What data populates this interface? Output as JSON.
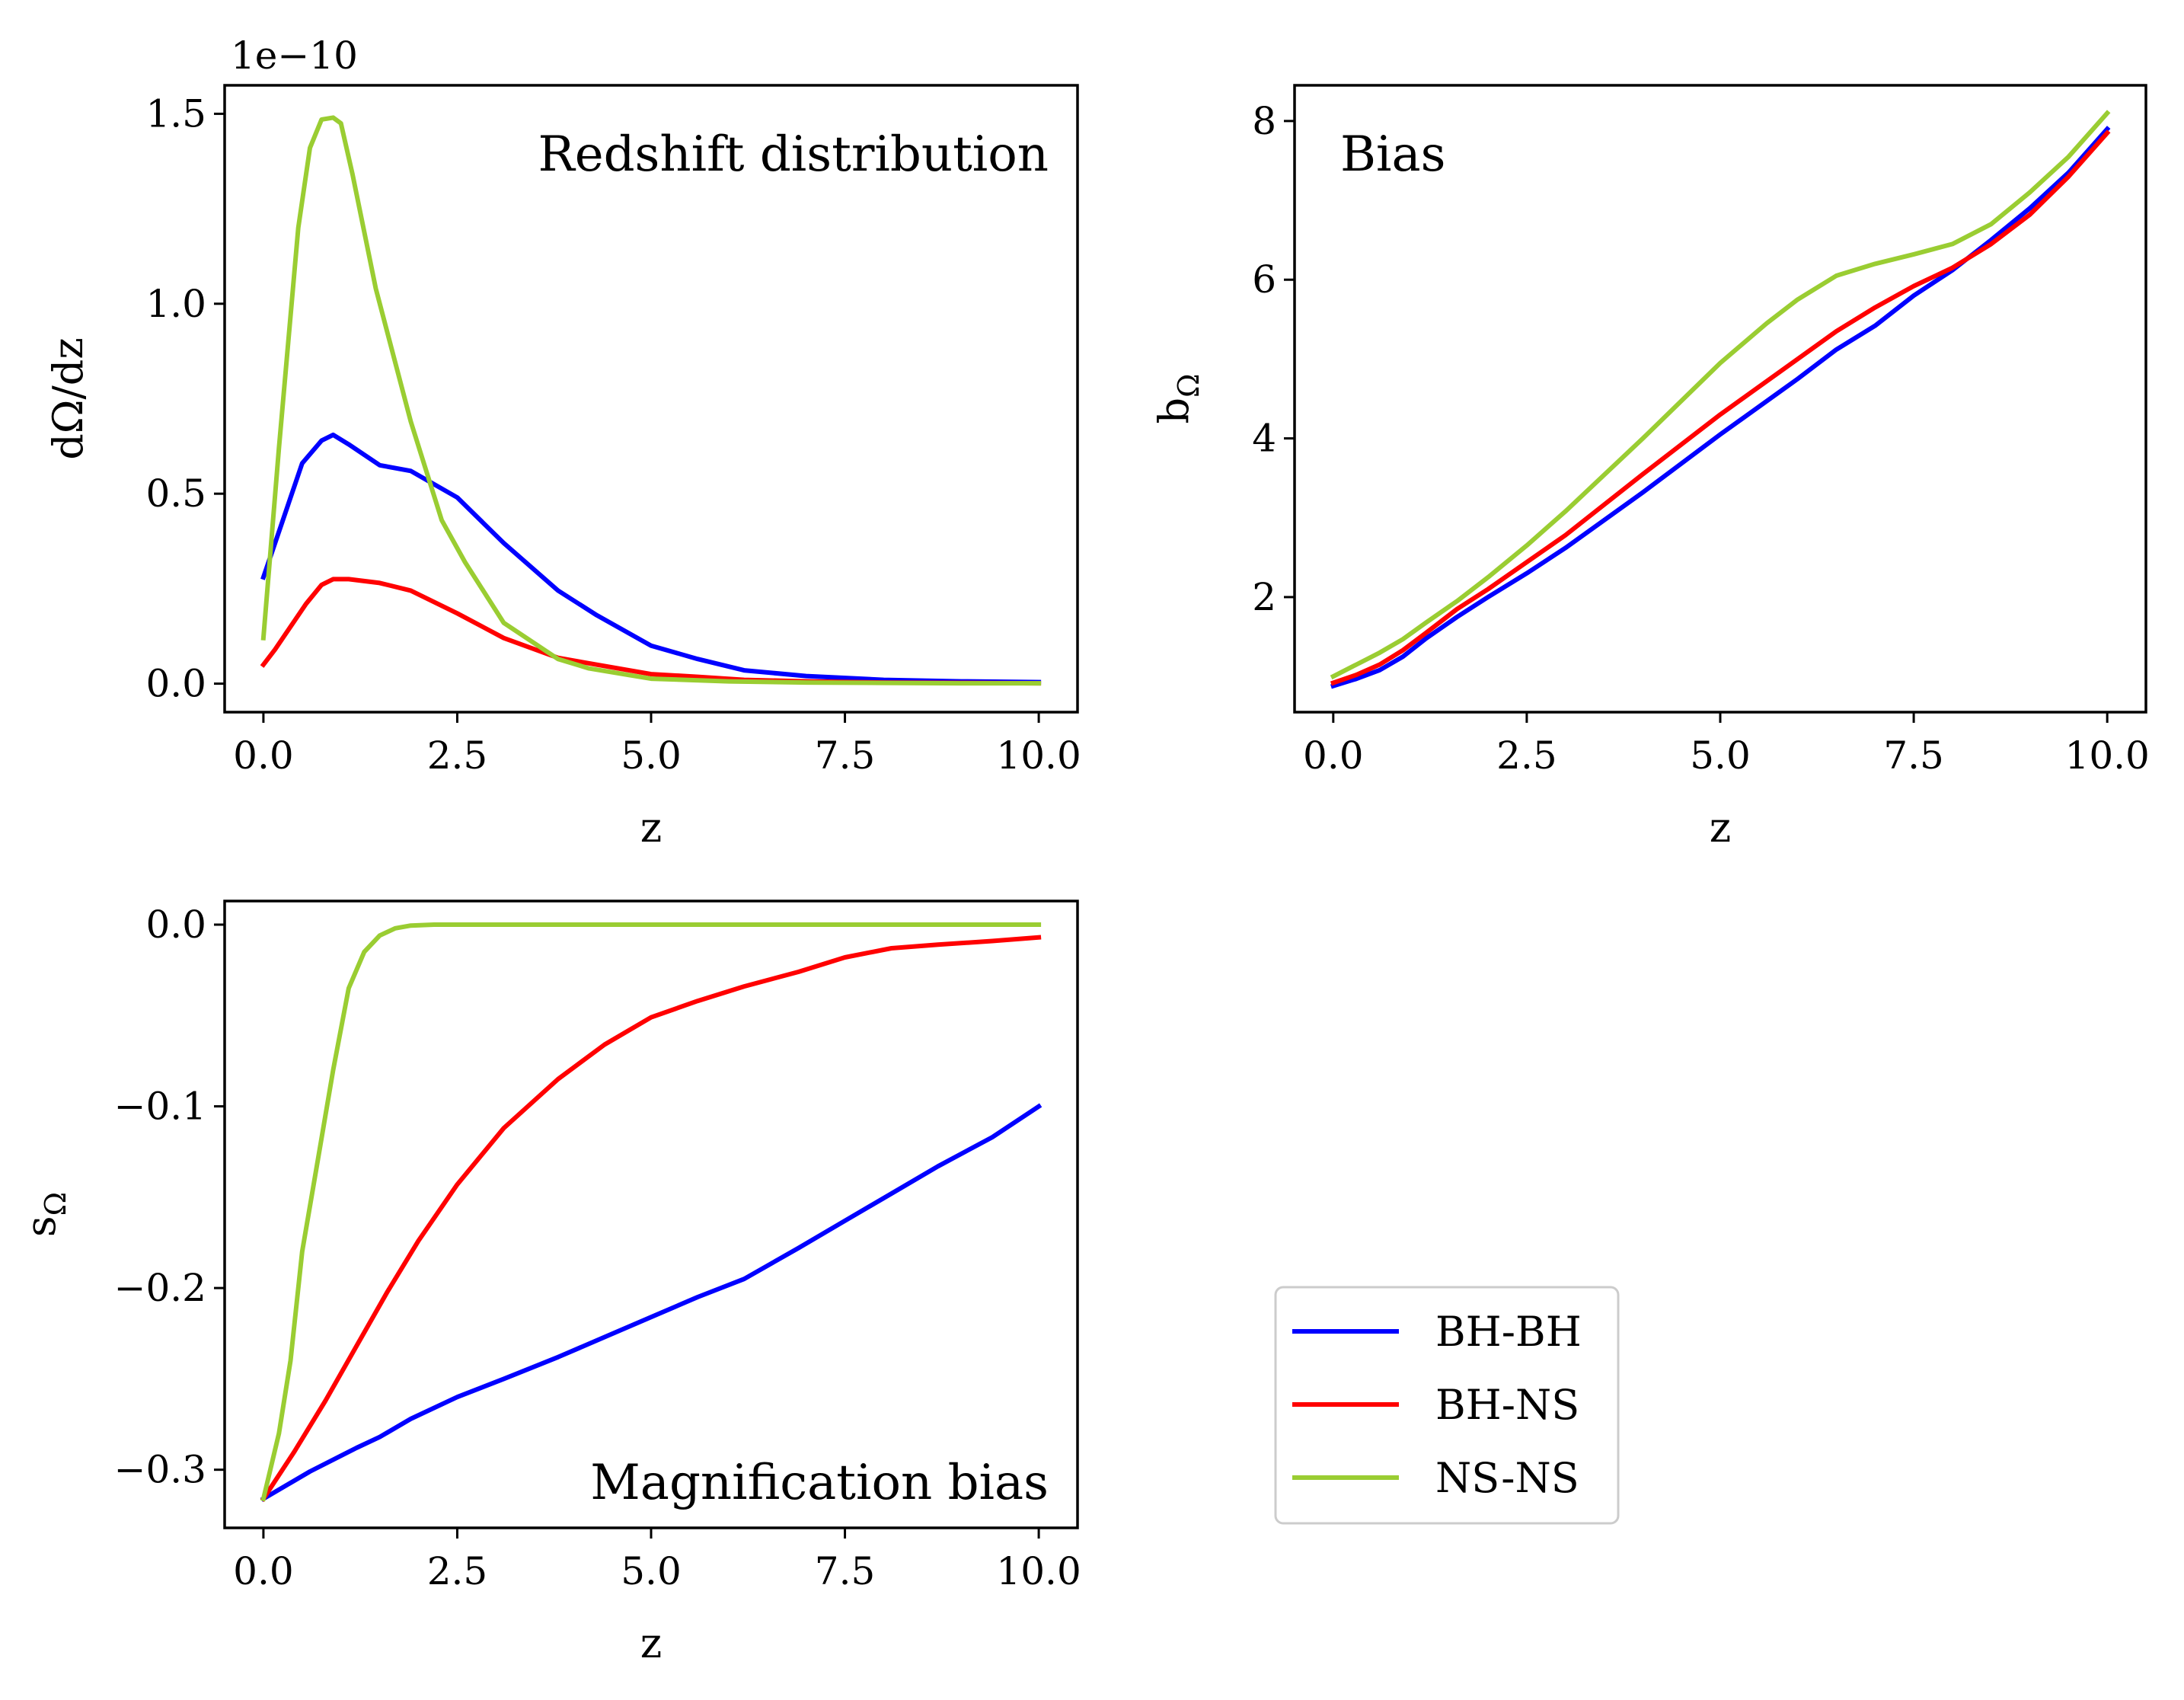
{
  "chart_data": [
    {
      "type": "line",
      "title": "Redshift distribution",
      "xlabel": "z",
      "ylabel": "dΩ/dz",
      "offset_label": "1e−10",
      "xlim": [
        -0.5,
        10.5
      ],
      "ylim": [
        -0.075,
        1.575
      ],
      "xticks": [
        0,
        2.5,
        5,
        7.5,
        10
      ],
      "xtick_labels": [
        "0.0",
        "2.5",
        "5.0",
        "7.5",
        "10.0"
      ],
      "yticks": [
        0,
        0.5,
        1.0,
        1.5
      ],
      "ytick_labels": [
        "0.0",
        "0.5",
        "1.0",
        "1.5"
      ],
      "title_position": "top-right",
      "series": [
        {
          "name": "BH-BH",
          "color": "#0000ff",
          "x": [
            0,
            0.25,
            0.5,
            0.75,
            0.9,
            1.1,
            1.5,
            1.9,
            2.5,
            3.1,
            3.8,
            4.3,
            5.0,
            5.6,
            6.2,
            7.0,
            8.0,
            9.0,
            10.0
          ],
          "y": [
            0.28,
            0.43,
            0.58,
            0.64,
            0.655,
            0.63,
            0.575,
            0.56,
            0.49,
            0.37,
            0.245,
            0.18,
            0.1,
            0.065,
            0.035,
            0.02,
            0.01,
            0.006,
            0.004
          ]
        },
        {
          "name": "BH-NS",
          "color": "#ff0000",
          "x": [
            0,
            0.15,
            0.35,
            0.55,
            0.75,
            0.9,
            1.1,
            1.5,
            1.9,
            2.5,
            3.1,
            3.8,
            4.3,
            5.0,
            5.6,
            6.2,
            7.0,
            8.0,
            9.0,
            10.0
          ],
          "y": [
            0.05,
            0.09,
            0.15,
            0.21,
            0.26,
            0.275,
            0.275,
            0.265,
            0.245,
            0.185,
            0.12,
            0.068,
            0.05,
            0.025,
            0.018,
            0.01,
            0.006,
            0.003,
            0.002,
            0.001
          ]
        },
        {
          "name": "NS-NS",
          "color": "#9acd32",
          "x": [
            0,
            0.2,
            0.45,
            0.6,
            0.75,
            0.9,
            1.0,
            1.15,
            1.45,
            1.9,
            2.3,
            2.6,
            3.1,
            3.8,
            4.2,
            5.0,
            6.0,
            7.0,
            8.0,
            9.0,
            10.0
          ],
          "y": [
            0.12,
            0.62,
            1.2,
            1.41,
            1.485,
            1.49,
            1.475,
            1.34,
            1.04,
            0.69,
            0.43,
            0.32,
            0.16,
            0.065,
            0.04,
            0.013,
            0.006,
            0.003,
            0.002,
            0.001,
            0.001
          ]
        }
      ]
    },
    {
      "type": "line",
      "title": "Bias",
      "xlabel": "z",
      "ylabel": "b",
      "ylabel_sub": "Ω",
      "xlim": [
        -0.5,
        10.5
      ],
      "ylim": [
        0.55,
        8.45
      ],
      "xticks": [
        0,
        2.5,
        5,
        7.5,
        10
      ],
      "xtick_labels": [
        "0.0",
        "2.5",
        "5.0",
        "7.5",
        "10.0"
      ],
      "yticks": [
        2,
        4,
        6,
        8
      ],
      "ytick_labels": [
        "2",
        "4",
        "6",
        "8"
      ],
      "title_position": "top-left",
      "series": [
        {
          "name": "BH-BH",
          "color": "#0000ff",
          "x": [
            0,
            0.3,
            0.6,
            0.9,
            1.2,
            1.6,
            2.0,
            2.5,
            3.0,
            4.0,
            5.0,
            6.0,
            6.5,
            7.0,
            7.5,
            8.0,
            8.5,
            9.0,
            9.5,
            10.0
          ],
          "y": [
            0.88,
            0.97,
            1.08,
            1.25,
            1.48,
            1.75,
            2.0,
            2.3,
            2.62,
            3.32,
            4.05,
            4.75,
            5.12,
            5.42,
            5.8,
            6.12,
            6.5,
            6.9,
            7.35,
            7.9
          ]
        },
        {
          "name": "BH-NS",
          "color": "#ff0000",
          "x": [
            0,
            0.3,
            0.6,
            0.9,
            1.2,
            1.6,
            2.0,
            2.5,
            3.0,
            4.0,
            5.0,
            6.0,
            6.5,
            7.0,
            7.5,
            8.0,
            8.5,
            9.0,
            9.5,
            10.0
          ],
          "y": [
            0.92,
            1.02,
            1.15,
            1.33,
            1.55,
            1.85,
            2.1,
            2.44,
            2.78,
            3.55,
            4.3,
            5.0,
            5.35,
            5.65,
            5.92,
            6.15,
            6.45,
            6.82,
            7.3,
            7.85
          ]
        },
        {
          "name": "NS-NS",
          "color": "#9acd32",
          "x": [
            0,
            0.3,
            0.6,
            0.9,
            1.2,
            1.6,
            2.0,
            2.5,
            3.0,
            4.0,
            5.0,
            5.6,
            6.0,
            6.5,
            7.0,
            7.5,
            8.0,
            8.5,
            9.0,
            9.5,
            10.0
          ],
          "y": [
            1.0,
            1.15,
            1.3,
            1.47,
            1.68,
            1.95,
            2.25,
            2.65,
            3.08,
            4.0,
            4.95,
            5.45,
            5.75,
            6.05,
            6.2,
            6.32,
            6.45,
            6.7,
            7.1,
            7.55,
            8.1
          ]
        }
      ]
    },
    {
      "type": "line",
      "title": "Magnification bias",
      "xlabel": "z",
      "ylabel": "s",
      "ylabel_sub": "Ω",
      "xlim": [
        -0.5,
        10.5
      ],
      "ylim": [
        -0.332,
        0.013
      ],
      "xticks": [
        0,
        2.5,
        5,
        7.5,
        10
      ],
      "xtick_labels": [
        "0.0",
        "2.5",
        "5.0",
        "7.5",
        "10.0"
      ],
      "yticks": [
        -0.3,
        -0.2,
        -0.1,
        0.0
      ],
      "ytick_labels": [
        "−0.3",
        "−0.2",
        "−0.1",
        "0.0"
      ],
      "title_position": "bottom-right",
      "series": [
        {
          "name": "BH-BH",
          "color": "#0000ff",
          "x": [
            0,
            0.6,
            1.2,
            1.5,
            1.9,
            2.5,
            3.1,
            3.8,
            4.4,
            5.0,
            5.6,
            6.2,
            6.9,
            7.5,
            8.1,
            8.7,
            9.4,
            10.0
          ],
          "y": [
            -0.316,
            -0.301,
            -0.288,
            -0.282,
            -0.272,
            -0.26,
            -0.25,
            -0.238,
            -0.227,
            -0.216,
            -0.205,
            -0.195,
            -0.178,
            -0.163,
            -0.148,
            -0.133,
            -0.117,
            -0.1
          ]
        },
        {
          "name": "BH-NS",
          "color": "#ff0000",
          "x": [
            0,
            0.4,
            0.8,
            1.2,
            1.6,
            2.0,
            2.5,
            3.1,
            3.8,
            4.4,
            5.0,
            5.6,
            6.2,
            6.9,
            7.5,
            8.1,
            8.7,
            9.4,
            10.0
          ],
          "y": [
            -0.316,
            -0.29,
            -0.262,
            -0.232,
            -0.202,
            -0.174,
            -0.143,
            -0.112,
            -0.085,
            -0.066,
            -0.051,
            -0.042,
            -0.034,
            -0.026,
            -0.018,
            -0.013,
            -0.011,
            -0.009,
            -0.007
          ]
        },
        {
          "name": "NS-NS",
          "color": "#9acd32",
          "x": [
            0,
            0.2,
            0.35,
            0.5,
            0.7,
            0.9,
            1.1,
            1.3,
            1.5,
            1.7,
            1.9,
            2.2,
            2.5,
            3.0,
            4.0,
            5.0,
            6.0,
            7.0,
            8.0,
            9.0,
            10.0
          ],
          "y": [
            -0.316,
            -0.28,
            -0.24,
            -0.18,
            -0.13,
            -0.08,
            -0.035,
            -0.015,
            -0.006,
            -0.002,
            -0.0005,
            0,
            0,
            0,
            0,
            0,
            0,
            0,
            0,
            0,
            0
          ]
        }
      ]
    }
  ],
  "legend": {
    "placement": "lower-center-right",
    "entries": [
      {
        "label": "BH-BH",
        "color": "#0000ff"
      },
      {
        "label": "BH-NS",
        "color": "#ff0000"
      },
      {
        "label": "NS-NS",
        "color": "#9acd32"
      }
    ]
  }
}
